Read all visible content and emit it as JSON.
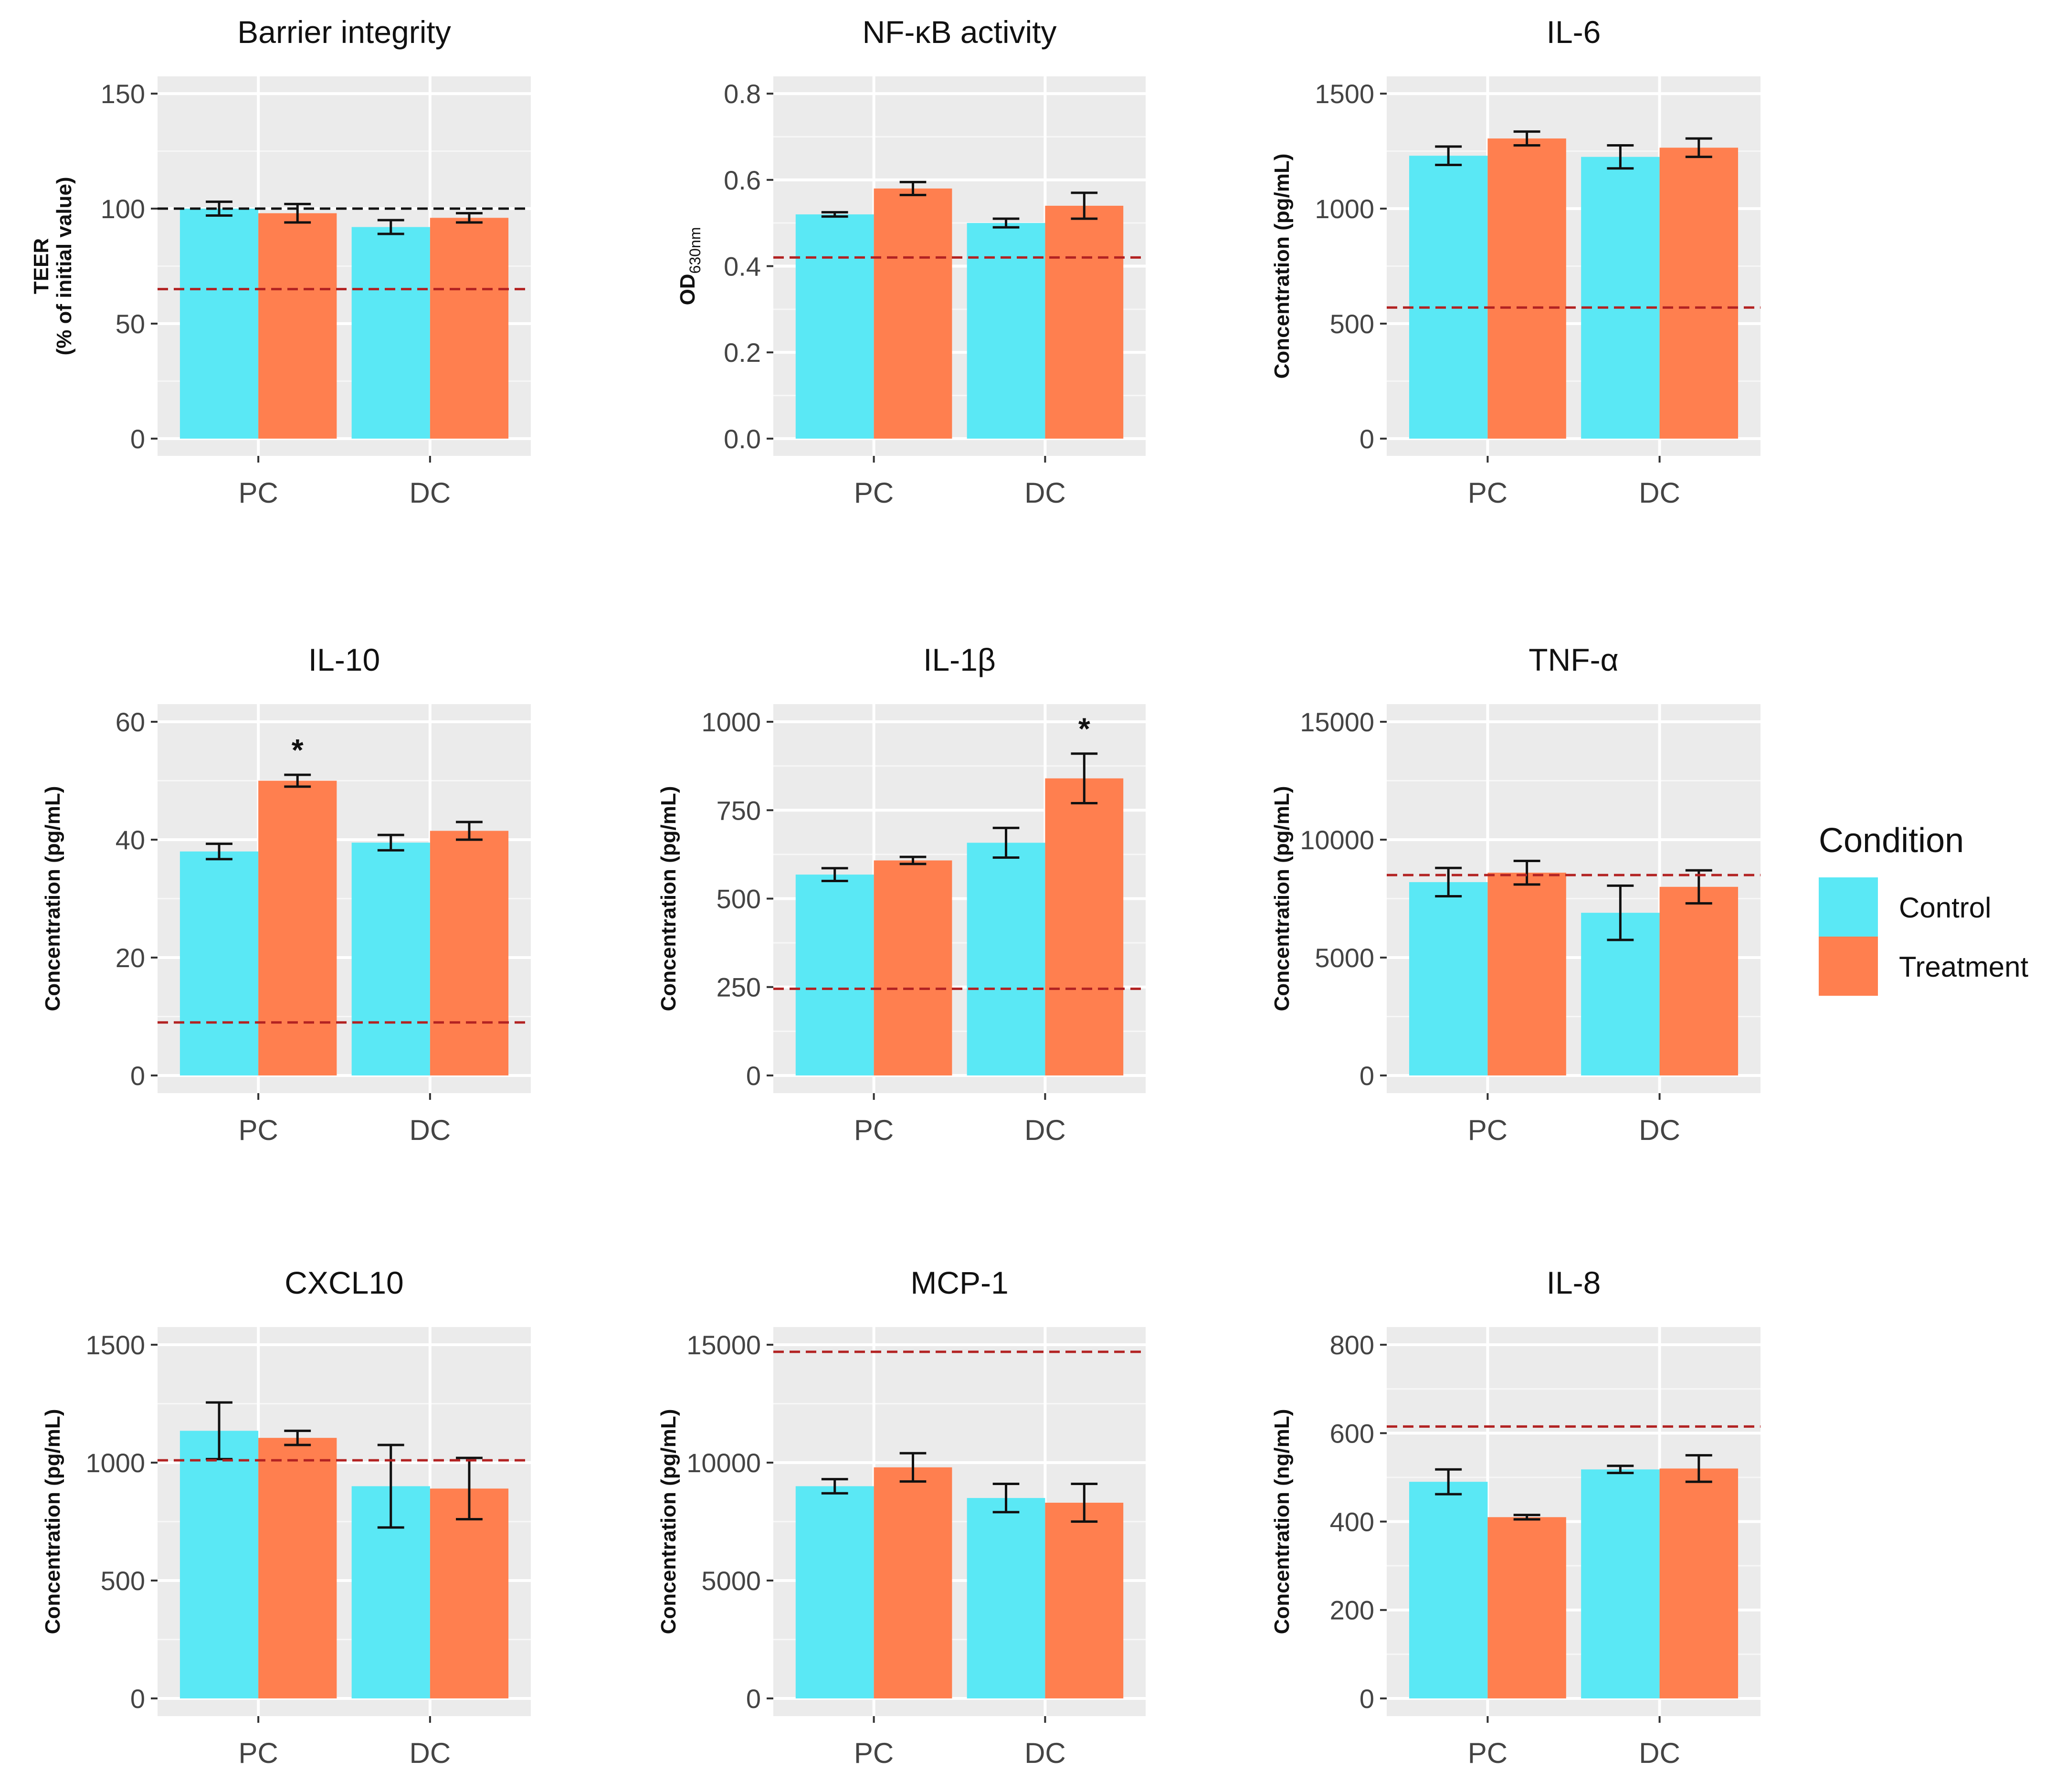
{
  "legend": {
    "title": "Condition",
    "items": [
      {
        "label": "Control",
        "color": "#5AE8F5"
      },
      {
        "label": "Treatment",
        "color": "#FF7F4F"
      }
    ]
  },
  "colors": {
    "panel_bg": "#EBEBEB",
    "grid": "#FFFFFF",
    "reference_line": "#B22222",
    "black_reference_line": "#111111"
  },
  "chart_data": [
    {
      "type": "bar",
      "title": "Barrier integrity",
      "ylabel": "TEER",
      "ylabel2": "(% of initial value)",
      "ylim": [
        0,
        150
      ],
      "yticks": [
        0,
        50,
        100,
        150
      ],
      "categories": [
        "PC",
        "DC"
      ],
      "series": [
        {
          "name": "Control",
          "values": [
            100,
            92
          ],
          "errors": [
            3,
            3
          ]
        },
        {
          "name": "Treatment",
          "values": [
            98,
            96
          ],
          "errors": [
            4,
            2
          ]
        }
      ],
      "reference_lines": [
        {
          "value": 100,
          "color": "black"
        },
        {
          "value": 65,
          "color": "red"
        }
      ],
      "significance": []
    },
    {
      "type": "bar",
      "title": "NF-κB activity",
      "ylabel": "OD",
      "ylabel_sub": "630nm",
      "ylim": [
        0,
        0.8
      ],
      "yticks": [
        "0.0",
        "0.2",
        "0.4",
        "0.6",
        "0.8"
      ],
      "categories": [
        "PC",
        "DC"
      ],
      "series": [
        {
          "name": "Control",
          "values": [
            0.52,
            0.5
          ],
          "errors": [
            0.005,
            0.01
          ]
        },
        {
          "name": "Treatment",
          "values": [
            0.58,
            0.54
          ],
          "errors": [
            0.015,
            0.03
          ]
        }
      ],
      "reference_lines": [
        {
          "value": 0.42,
          "color": "red"
        }
      ],
      "significance": []
    },
    {
      "type": "bar",
      "title": "IL-6",
      "ylabel": "Concentration (pg/mL)",
      "ylim": [
        0,
        1500
      ],
      "yticks": [
        0,
        500,
        1000,
        1500
      ],
      "categories": [
        "PC",
        "DC"
      ],
      "series": [
        {
          "name": "Control",
          "values": [
            1230,
            1225
          ],
          "errors": [
            40,
            50
          ]
        },
        {
          "name": "Treatment",
          "values": [
            1305,
            1265
          ],
          "errors": [
            30,
            40
          ]
        }
      ],
      "reference_lines": [
        {
          "value": 570,
          "color": "red"
        }
      ],
      "significance": []
    },
    {
      "type": "bar",
      "title": "IL-10",
      "ylabel": "Concentration (pg/mL)",
      "ylim": [
        0,
        60
      ],
      "yticks": [
        0,
        20,
        40,
        60
      ],
      "categories": [
        "PC",
        "DC"
      ],
      "series": [
        {
          "name": "Control",
          "values": [
            38,
            39.5
          ],
          "errors": [
            1.3,
            1.3
          ]
        },
        {
          "name": "Treatment",
          "values": [
            50,
            41.5
          ],
          "errors": [
            1,
            1.5
          ]
        }
      ],
      "reference_lines": [
        {
          "value": 9,
          "color": "red"
        }
      ],
      "significance": [
        {
          "category": 0,
          "series": 1,
          "label": "*"
        }
      ]
    },
    {
      "type": "bar",
      "title": "IL-1β",
      "ylabel": "Concentration (pg/mL)",
      "ylim": [
        0,
        1000
      ],
      "yticks": [
        0,
        250,
        500,
        750,
        1000
      ],
      "categories": [
        "PC",
        "DC"
      ],
      "series": [
        {
          "name": "Control",
          "values": [
            568,
            658
          ],
          "errors": [
            18,
            42
          ]
        },
        {
          "name": "Treatment",
          "values": [
            608,
            840
          ],
          "errors": [
            10,
            70
          ]
        }
      ],
      "reference_lines": [
        {
          "value": 245,
          "color": "red"
        }
      ],
      "significance": [
        {
          "category": 1,
          "series": 1,
          "label": "*"
        }
      ]
    },
    {
      "type": "bar",
      "title": "TNF-α",
      "ylabel": "Concentration (pg/mL)",
      "ylim": [
        0,
        15000
      ],
      "yticks": [
        0,
        5000,
        10000,
        15000
      ],
      "categories": [
        "PC",
        "DC"
      ],
      "series": [
        {
          "name": "Control",
          "values": [
            8200,
            6900
          ],
          "errors": [
            600,
            1150
          ]
        },
        {
          "name": "Treatment",
          "values": [
            8600,
            8000
          ],
          "errors": [
            500,
            700
          ]
        }
      ],
      "reference_lines": [
        {
          "value": 8500,
          "color": "red"
        }
      ],
      "significance": []
    },
    {
      "type": "bar",
      "title": "CXCL10",
      "ylabel": "Concentration (pg/mL)",
      "ylim": [
        0,
        1500
      ],
      "yticks": [
        0,
        500,
        1000,
        1500
      ],
      "categories": [
        "PC",
        "DC"
      ],
      "series": [
        {
          "name": "Control",
          "values": [
            1135,
            900
          ],
          "errors": [
            120,
            175
          ]
        },
        {
          "name": "Treatment",
          "values": [
            1105,
            890
          ],
          "errors": [
            30,
            130
          ]
        }
      ],
      "reference_lines": [
        {
          "value": 1010,
          "color": "red"
        }
      ],
      "significance": []
    },
    {
      "type": "bar",
      "title": "MCP-1",
      "ylabel": "Concentration (pg/mL)",
      "ylim": [
        0,
        15000
      ],
      "yticks": [
        0,
        5000,
        10000,
        15000
      ],
      "categories": [
        "PC",
        "DC"
      ],
      "series": [
        {
          "name": "Control",
          "values": [
            9000,
            8500
          ],
          "errors": [
            300,
            600
          ]
        },
        {
          "name": "Treatment",
          "values": [
            9800,
            8300
          ],
          "errors": [
            600,
            800
          ]
        }
      ],
      "reference_lines": [
        {
          "value": 14700,
          "color": "red"
        }
      ],
      "significance": []
    },
    {
      "type": "bar",
      "title": "IL-8",
      "ylabel": "Concentration (ng/mL)",
      "ylim": [
        0,
        800
      ],
      "yticks": [
        0,
        200,
        400,
        600,
        800
      ],
      "categories": [
        "PC",
        "DC"
      ],
      "series": [
        {
          "name": "Control",
          "values": [
            490,
            518
          ],
          "errors": [
            28,
            8
          ]
        },
        {
          "name": "Treatment",
          "values": [
            410,
            520
          ],
          "errors": [
            5,
            30
          ]
        }
      ],
      "reference_lines": [
        {
          "value": 615,
          "color": "red"
        }
      ],
      "significance": []
    }
  ]
}
